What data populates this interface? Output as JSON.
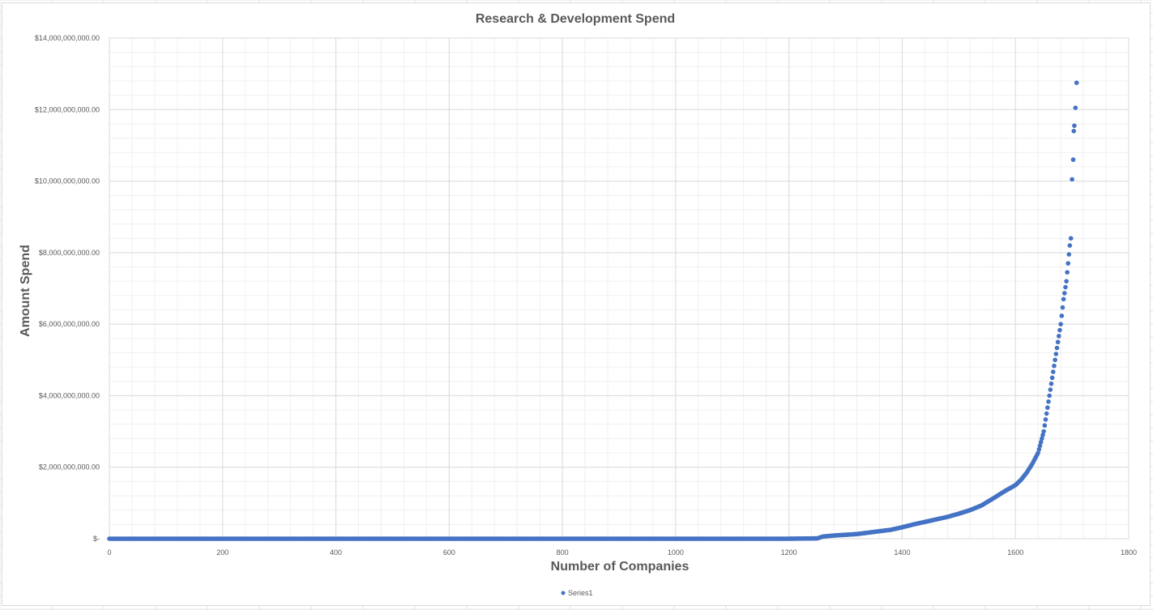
{
  "chart_data": {
    "type": "scatter",
    "title": "Research & Development  Spend",
    "xlabel": "Number of Companies",
    "ylabel": "Amount Spend",
    "xlim": [
      0,
      1800
    ],
    "ylim": [
      0,
      14000000000
    ],
    "x_ticks": [
      "0",
      "200",
      "400",
      "600",
      "800",
      "1000",
      "1200",
      "1400",
      "1600",
      "1800"
    ],
    "y_ticks": [
      "$-",
      "$2,000,000,000.00",
      "$4,000,000,000.00",
      "$6,000,000,000.00",
      "$8,000,000,000.00",
      "$10,000,000,000.00",
      "$12,000,000,000.00",
      "$14,000,000,000.00"
    ],
    "grid": "major and minor",
    "legend_position": "bottom",
    "marker_color": "#4472c4",
    "series": [
      {
        "name": "Series1",
        "x": [
          0,
          100,
          200,
          300,
          400,
          500,
          600,
          700,
          800,
          900,
          1000,
          1100,
          1200,
          1250,
          1260,
          1280,
          1300,
          1320,
          1340,
          1360,
          1380,
          1400,
          1420,
          1440,
          1460,
          1480,
          1500,
          1520,
          1540,
          1560,
          1580,
          1600,
          1610,
          1620,
          1630,
          1640,
          1645,
          1650,
          1655,
          1660,
          1665,
          1670,
          1675,
          1680,
          1685,
          1690,
          1693,
          1696,
          1698,
          1700,
          1702,
          1703,
          1704,
          1706,
          1708
        ],
        "values": [
          0,
          0,
          0,
          0,
          0,
          0,
          0,
          0,
          0,
          0,
          0,
          0,
          0,
          10000000,
          60000000,
          90000000,
          110000000,
          130000000,
          170000000,
          210000000,
          250000000,
          320000000,
          400000000,
          470000000,
          540000000,
          610000000,
          700000000,
          800000000,
          930000000,
          1120000000,
          1320000000,
          1500000000,
          1650000000,
          1850000000,
          2100000000,
          2400000000,
          2700000000,
          3000000000,
          3500000000,
          4000000000,
          4500000000,
          5000000000,
          5500000000,
          6000000000,
          6700000000,
          7200000000,
          7700000000,
          8200000000,
          8400000000,
          10050000000,
          10600000000,
          11400000000,
          11550000000,
          12050000000,
          12750000000
        ]
      }
    ]
  }
}
